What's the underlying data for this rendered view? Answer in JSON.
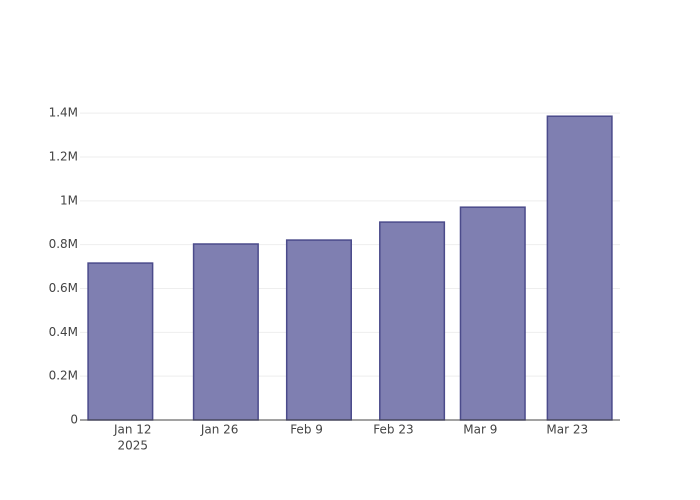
{
  "chart_data": {
    "type": "bar",
    "x": [
      "2025-01-10",
      "2025-01-27",
      "2025-02-11",
      "2025-02-26",
      "2025-03-11",
      "2025-03-25"
    ],
    "values": [
      716000,
      803000,
      821000,
      903000,
      971000,
      1386000
    ],
    "color": "#7f7fb1",
    "edge_color": "#4b4b8b",
    "xlim": [
      "2025-01-03T12:00:00Z",
      "2025-03-31T12:00:00Z"
    ],
    "xticks": [
      {
        "value": "2025-01-12",
        "label": "Jan 12",
        "sublabel": "2025"
      },
      {
        "value": "2025-01-26",
        "label": "Jan 26"
      },
      {
        "value": "2025-02-09",
        "label": "Feb 9"
      },
      {
        "value": "2025-02-23",
        "label": "Feb 23"
      },
      {
        "value": "2025-03-09",
        "label": "Mar 9"
      },
      {
        "value": "2025-03-23",
        "label": "Mar 23"
      }
    ],
    "ylim": [
      0,
      1460000
    ],
    "yticks": [
      0,
      {
        "value": 200000,
        "label": "0.2M"
      },
      {
        "value": 400000,
        "label": "0.4M"
      },
      {
        "value": 600000,
        "label": "0.6M"
      },
      {
        "value": 800000,
        "label": "0.8M"
      },
      {
        "value": 1000000,
        "label": "1M"
      },
      {
        "value": 1200000,
        "label": "1.2M"
      },
      {
        "value": 1400000,
        "label": "1.4M"
      }
    ],
    "grid": true
  }
}
